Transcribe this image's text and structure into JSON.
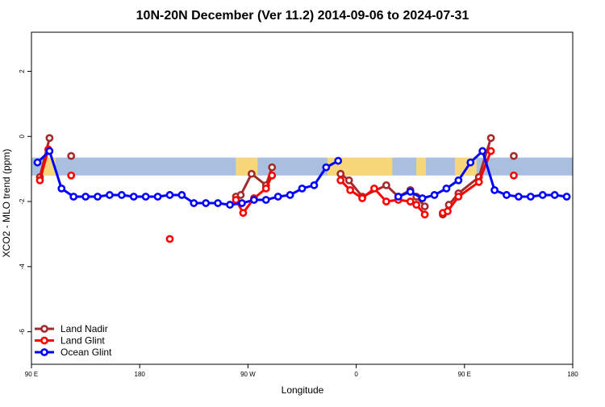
{
  "chart_data": {
    "type": "line",
    "title": "10N-20N December (Ver 11.2)   2014-09-06 to 2024-07-31",
    "xlabel": "Longitude",
    "ylabel": "XCO2 - MLO trend (ppm)",
    "xlim": [
      -90,
      360
    ],
    "ylim": [
      -7,
      3.2
    ],
    "x_ticks": [
      {
        "value": -90,
        "label": "90 E"
      },
      {
        "value": 0,
        "label": "180"
      },
      {
        "value": 90,
        "label": "90 W"
      },
      {
        "value": 180,
        "label": "0"
      },
      {
        "value": 270,
        "label": "90 E"
      },
      {
        "value": 360,
        "label": "180"
      }
    ],
    "y_ticks": [
      {
        "value": 2,
        "label": "2"
      },
      {
        "value": 0,
        "label": "0"
      },
      {
        "value": -2,
        "label": "-2"
      },
      {
        "value": -4,
        "label": "-4"
      },
      {
        "value": -6,
        "label": "-6"
      }
    ],
    "band": {
      "y_min": -1.2,
      "y_max": -0.65,
      "ocean_color": "#a8bfdf",
      "land_color": "#f7d77a"
    },
    "land_segments": [
      [
        -80,
        -70
      ],
      [
        80,
        98
      ],
      [
        156,
        210
      ],
      [
        230,
        238
      ],
      [
        262,
        280
      ]
    ],
    "series": [
      {
        "name": "Land Nadir",
        "color": "#a52a2a",
        "segments": [
          [
            [
              -83,
              -1.25
            ],
            [
              -75,
              -0.05
            ]
          ],
          [
            [
              -57,
              -0.6
            ]
          ],
          [
            [
              80,
              -1.85
            ],
            [
              84,
              -1.8
            ],
            [
              93,
              -1.15
            ],
            [
              105,
              -1.5
            ],
            [
              110,
              -0.95
            ]
          ],
          [
            [
              167,
              -1.15
            ],
            [
              174,
              -1.35
            ],
            [
              185,
              -1.85
            ],
            [
              205,
              -1.5
            ],
            [
              215,
              -1.85
            ],
            [
              225,
              -1.65
            ],
            [
              230,
              -1.85
            ],
            [
              237,
              -2.15
            ]
          ],
          [
            [
              252,
              -2.4
            ],
            [
              257,
              -2.1
            ],
            [
              265,
              -1.75
            ],
            [
              282,
              -1.25
            ],
            [
              292,
              -0.05
            ]
          ],
          [
            [
              311,
              -0.6
            ]
          ]
        ]
      },
      {
        "name": "Land Glint",
        "color": "#ff0000",
        "segments": [
          [
            [
              -83,
              -1.35
            ],
            [
              -76,
              -0.4
            ]
          ],
          [
            [
              -57,
              -1.2
            ]
          ],
          [
            [
              25,
              -3.15
            ]
          ],
          [
            [
              80,
              -1.95
            ],
            [
              86,
              -2.35
            ],
            [
              95,
              -1.9
            ],
            [
              105,
              -1.6
            ],
            [
              110,
              -1.2
            ]
          ],
          [
            [
              167,
              -1.35
            ],
            [
              175,
              -1.65
            ],
            [
              185,
              -1.9
            ],
            [
              195,
              -1.6
            ],
            [
              205,
              -2.0
            ],
            [
              215,
              -1.95
            ],
            [
              225,
              -2.0
            ],
            [
              230,
              -2.1
            ],
            [
              237,
              -2.4
            ]
          ],
          [
            [
              252,
              -2.35
            ],
            [
              256,
              -2.3
            ],
            [
              265,
              -1.85
            ],
            [
              282,
              -1.4
            ],
            [
              292,
              -0.45
            ]
          ],
          [
            [
              311,
              -1.2
            ]
          ]
        ]
      },
      {
        "name": "Ocean Glint",
        "color": "#0000ff",
        "segments": [
          [
            [
              -85,
              -0.8
            ],
            [
              -75,
              -0.45
            ],
            [
              -65,
              -1.6
            ],
            [
              -55,
              -1.85
            ],
            [
              -45,
              -1.85
            ],
            [
              -35,
              -1.85
            ],
            [
              -25,
              -1.8
            ],
            [
              -15,
              -1.8
            ],
            [
              -5,
              -1.85
            ],
            [
              5,
              -1.85
            ],
            [
              15,
              -1.85
            ],
            [
              25,
              -1.8
            ],
            [
              35,
              -1.8
            ],
            [
              45,
              -2.05
            ],
            [
              55,
              -2.05
            ],
            [
              65,
              -2.05
            ],
            [
              75,
              -2.1
            ],
            [
              85,
              -2.05
            ],
            [
              95,
              -1.95
            ],
            [
              105,
              -1.95
            ],
            [
              115,
              -1.85
            ],
            [
              125,
              -1.8
            ],
            [
              135,
              -1.6
            ],
            [
              145,
              -1.5
            ],
            [
              155,
              -0.95
            ],
            [
              165,
              -0.75
            ]
          ],
          [
            [
              215,
              -1.85
            ],
            [
              225,
              -1.7
            ],
            [
              235,
              -1.9
            ],
            [
              245,
              -1.8
            ],
            [
              255,
              -1.6
            ],
            [
              265,
              -1.35
            ],
            [
              275,
              -0.8
            ],
            [
              285,
              -0.45
            ],
            [
              295,
              -1.65
            ],
            [
              305,
              -1.8
            ],
            [
              315,
              -1.85
            ],
            [
              325,
              -1.85
            ],
            [
              335,
              -1.8
            ],
            [
              345,
              -1.8
            ],
            [
              355,
              -1.85
            ]
          ]
        ]
      }
    ],
    "legend": {
      "position": "bottom-left",
      "entries": [
        "Land Nadir",
        "Land Glint",
        "Ocean Glint"
      ]
    }
  }
}
